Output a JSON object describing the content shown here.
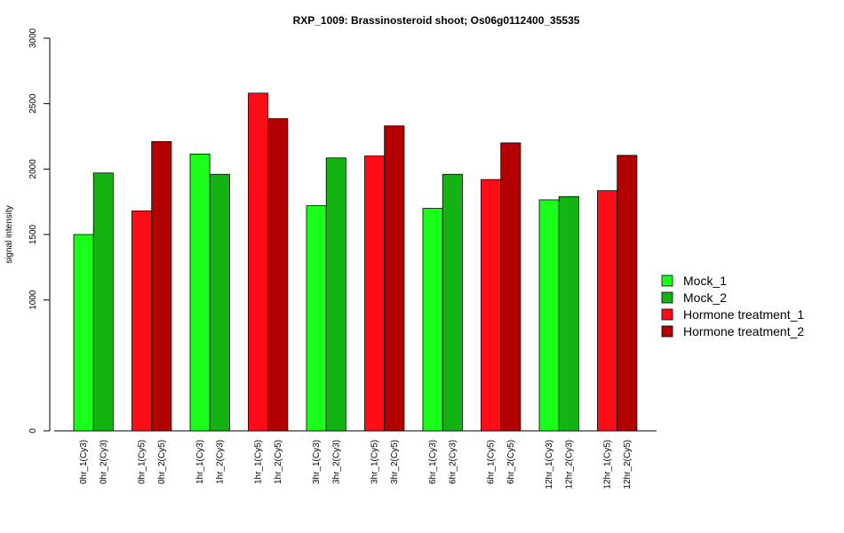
{
  "chart_data": {
    "type": "bar",
    "title": "RXP_1009: Brassinosteroid shoot; Os06g0112400_35535",
    "ylabel": "signal intensity",
    "xlabel": "",
    "ylim": [
      0,
      3000
    ],
    "yticks": [
      "0",
      "1000",
      "1500",
      "2000",
      "2500",
      "3000"
    ],
    "legend_position": "right",
    "legend": [
      {
        "name": "Mock_1",
        "color": "#1aff1a"
      },
      {
        "name": "Mock_2",
        "color": "#12b312"
      },
      {
        "name": "Hormone treatment_1",
        "color": "#ff0d17"
      },
      {
        "name": "Hormone treatment_2",
        "color": "#b30000"
      }
    ],
    "groups": [
      {
        "bars": [
          {
            "label": "0hr_1(Cy3)",
            "value": 1500,
            "color": "#1aff1a"
          },
          {
            "label": "0hr_2(Cy3)",
            "value": 1970,
            "color": "#12b312"
          }
        ]
      },
      {
        "bars": [
          {
            "label": "0hr_1(Cy5)",
            "value": 1680,
            "color": "#ff0d17"
          },
          {
            "label": "0hr_2(Cy5)",
            "value": 2210,
            "color": "#b30000"
          }
        ]
      },
      {
        "bars": [
          {
            "label": "1hr_1(Cy3)",
            "value": 2115,
            "color": "#1aff1a"
          },
          {
            "label": "1hr_2(Cy3)",
            "value": 1960,
            "color": "#12b312"
          }
        ]
      },
      {
        "bars": [
          {
            "label": "1hr_1(Cy5)",
            "value": 2580,
            "color": "#ff0d17"
          },
          {
            "label": "1hr_2(Cy5)",
            "value": 2385,
            "color": "#b30000"
          }
        ]
      },
      {
        "bars": [
          {
            "label": "3hr_1(Cy3)",
            "value": 1720,
            "color": "#1aff1a"
          },
          {
            "label": "3hr_2(Cy3)",
            "value": 2085,
            "color": "#12b312"
          }
        ]
      },
      {
        "bars": [
          {
            "label": "3hr_1(Cy5)",
            "value": 2100,
            "color": "#ff0d17"
          },
          {
            "label": "3hr_2(Cy5)",
            "value": 2330,
            "color": "#b30000"
          }
        ]
      },
      {
        "bars": [
          {
            "label": "6hr_1(Cy3)",
            "value": 1700,
            "color": "#1aff1a"
          },
          {
            "label": "6hr_2(Cy3)",
            "value": 1960,
            "color": "#12b312"
          }
        ]
      },
      {
        "bars": [
          {
            "label": "6hr_1(Cy5)",
            "value": 1920,
            "color": "#ff0d17"
          },
          {
            "label": "6hr_2(Cy5)",
            "value": 2200,
            "color": "#b30000"
          }
        ]
      },
      {
        "bars": [
          {
            "label": "12hr_1(Cy3)",
            "value": 1765,
            "color": "#1aff1a"
          },
          {
            "label": "12hr_2(Cy3)",
            "value": 1790,
            "color": "#12b312"
          }
        ]
      },
      {
        "bars": [
          {
            "label": "12hr_1(Cy5)",
            "value": 1835,
            "color": "#ff0d17"
          },
          {
            "label": "12hr_2(Cy5)",
            "value": 2105,
            "color": "#b30000"
          }
        ]
      }
    ]
  }
}
